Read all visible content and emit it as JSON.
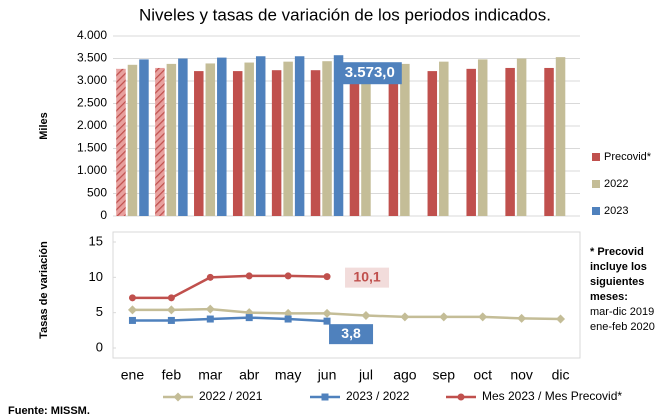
{
  "chart_data": [
    {
      "type": "bar",
      "title": "Niveles y tasas de variación de los periodos indicados.",
      "ylabel": "Miles",
      "ylim": [
        0,
        4000
      ],
      "yticks": [
        0,
        500,
        {
          "value": 1000,
          "label": "1.000"
        },
        {
          "value": 1500,
          "label": "1.500"
        },
        {
          "value": 2000,
          "label": "2.000"
        },
        {
          "value": 2500,
          "label": "2.500"
        },
        {
          "value": 3000,
          "label": "3.000"
        },
        {
          "value": 3500,
          "label": "3.500"
        },
        {
          "value": 4000,
          "label": "4.000"
        }
      ],
      "grid": true,
      "legend": "right",
      "series": [
        {
          "name": "Precovid*",
          "color": "#c0504d",
          "hatch": [
            true,
            true,
            false,
            false,
            false,
            false,
            false,
            false,
            false,
            false,
            false,
            false
          ],
          "values": [
            3270,
            3290,
            3220,
            3220,
            3240,
            3240,
            3210,
            3200,
            3220,
            3270,
            3290,
            3290
          ]
        },
        {
          "name": "2022",
          "color": "#c4bd97",
          "values": [
            3360,
            3380,
            3390,
            3410,
            3430,
            3440,
            3390,
            3380,
            3430,
            3480,
            3500,
            3530
          ]
        },
        {
          "name": "2023",
          "color": "#4f81bd",
          "values": [
            3480,
            3500,
            3520,
            3550,
            3550,
            3573.0,
            null,
            null,
            null,
            null,
            null,
            null
          ],
          "value_labels": [
            null,
            null,
            null,
            null,
            null,
            "3.573,0",
            null,
            null,
            null,
            null,
            null,
            null
          ]
        }
      ]
    },
    {
      "type": "line",
      "ylabel": "Tasas de variación",
      "ylim": [
        0,
        15
      ],
      "yticks": [
        0,
        5,
        10,
        15
      ],
      "legend": "bottom",
      "categories": [
        "ene",
        "feb",
        "mar",
        "abr",
        "may",
        "jun",
        "jul",
        "ago",
        "sep",
        "oct",
        "nov",
        "dic"
      ],
      "series": [
        {
          "name": "2022 / 2021",
          "color": "#c4bd97",
          "marker": "diamond",
          "values": [
            5.4,
            5.4,
            5.5,
            5.0,
            4.9,
            4.9,
            4.6,
            4.4,
            4.4,
            4.4,
            4.2,
            4.1
          ]
        },
        {
          "name": "2023 / 2022",
          "color": "#4f81bd",
          "marker": "square",
          "values": [
            3.9,
            3.9,
            4.1,
            4.3,
            4.1,
            3.8,
            null,
            null,
            null,
            null,
            null,
            null
          ],
          "value_labels": [
            null,
            null,
            null,
            null,
            null,
            "3,8",
            null,
            null,
            null,
            null,
            null,
            null
          ]
        },
        {
          "name": "Mes 2023 / Mes Precovid*",
          "color": "#c0504d",
          "marker": "circle",
          "values": [
            7.1,
            7.1,
            10.0,
            10.2,
            10.2,
            10.1,
            null,
            null,
            null,
            null,
            null,
            null
          ],
          "value_labels": [
            null,
            null,
            null,
            null,
            null,
            "10,1",
            null,
            null,
            null,
            null,
            null,
            null
          ]
        }
      ],
      "note": {
        "title_lines": [
          "* Precovid",
          "incluye los",
          "siguientes",
          "meses:"
        ],
        "lines": [
          "mar-dic 2019",
          "ene-feb 2020"
        ]
      },
      "source": "Fuente: MISSM."
    }
  ]
}
